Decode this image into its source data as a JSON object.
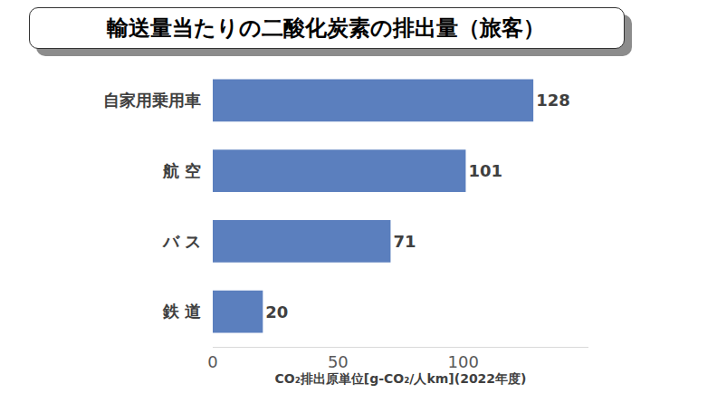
{
  "chart_data": {
    "type": "bar",
    "title": "輸送量当たりの二酸化炭素の排出量（旅客）",
    "orientation": "horizontal",
    "categories": [
      "自家用乗用車",
      "航 空",
      "バ ス",
      "鉄 道"
    ],
    "values": [
      128,
      101,
      71,
      20
    ],
    "color": "#5b7fbe",
    "x_label": "CO₂排出原単位[g-CO₂/人km](2022年度)",
    "xlim": [
      0,
      150
    ],
    "xticks": [
      0,
      50,
      100
    ],
    "grid": false,
    "data_labels": true
  }
}
